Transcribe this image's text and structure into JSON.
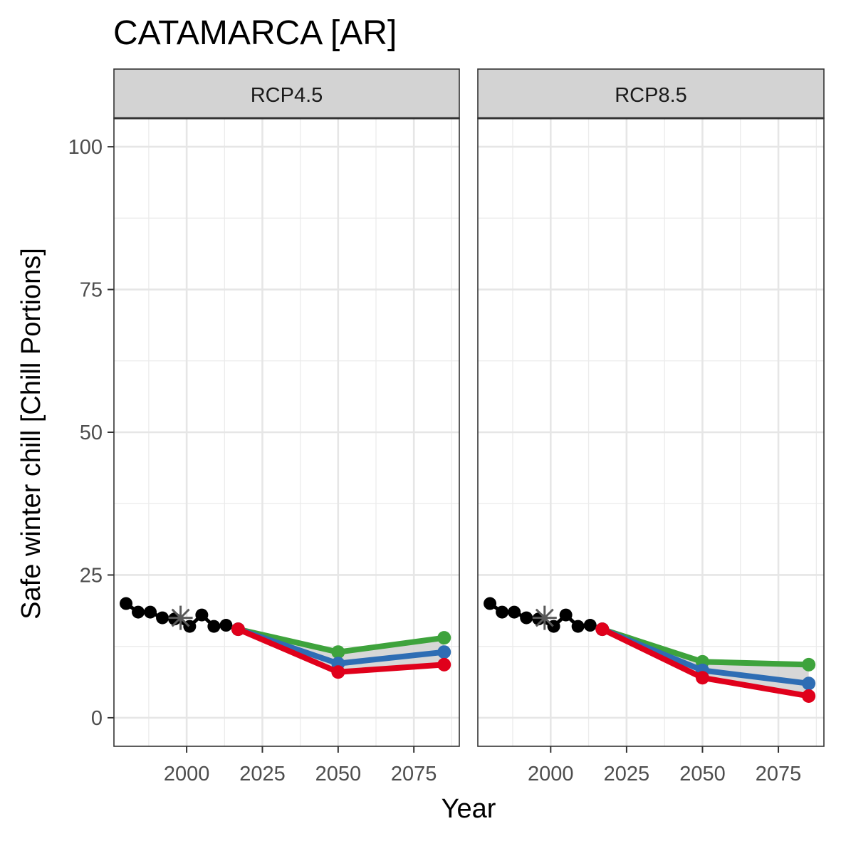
{
  "chart_data": {
    "type": "line",
    "title": "CATAMARCA [AR]",
    "xlabel": "Year",
    "ylabel": "Safe winter chill [Chill Portions]",
    "xlim": [
      1976,
      2090
    ],
    "ylim": [
      -5,
      105
    ],
    "x_ticks": [
      2000,
      2025,
      2050,
      2075
    ],
    "x_tick_labels": [
      "2000",
      "2025",
      "2050",
      "2075"
    ],
    "y_ticks": [
      0,
      25,
      50,
      75,
      100
    ],
    "y_tick_labels": [
      "0",
      "25",
      "50",
      "75",
      "100"
    ],
    "grid": true,
    "legend": "none",
    "colors": {
      "observed": "#000000",
      "optimistic": "#3ea33c",
      "median": "#2e6db4",
      "pessimistic": "#e0001b",
      "band": "#d3d3d3",
      "star": "#595959",
      "strip": "#d3d3d3"
    },
    "panels": [
      {
        "label": "RCP4.5",
        "observed": {
          "x": [
            1980,
            1984,
            1988,
            1992,
            1996,
            2001,
            2005,
            2009,
            2013
          ],
          "y": [
            20,
            18.5,
            18.5,
            17.5,
            17.3,
            16,
            18,
            16,
            16.2
          ]
        },
        "reference_star": {
          "x": 1998,
          "y": 17.5
        },
        "series": [
          {
            "key": "optimistic",
            "x": [
              2017,
              2050,
              2085
            ],
            "y": [
              15.5,
              11.5,
              14
            ]
          },
          {
            "key": "median",
            "x": [
              2017,
              2050,
              2085
            ],
            "y": [
              15.5,
              9.5,
              11.5
            ]
          },
          {
            "key": "pessimistic",
            "x": [
              2017,
              2050,
              2085
            ],
            "y": [
              15.5,
              8,
              9.3
            ]
          }
        ]
      },
      {
        "label": "RCP8.5",
        "observed": {
          "x": [
            1980,
            1984,
            1988,
            1992,
            1996,
            2001,
            2005,
            2009,
            2013
          ],
          "y": [
            20,
            18.5,
            18.5,
            17.5,
            17.3,
            16,
            18,
            16,
            16.2
          ]
        },
        "reference_star": {
          "x": 1998,
          "y": 17.5
        },
        "series": [
          {
            "key": "optimistic",
            "x": [
              2017,
              2050,
              2085
            ],
            "y": [
              15.5,
              9.8,
              9.3
            ]
          },
          {
            "key": "median",
            "x": [
              2017,
              2050,
              2085
            ],
            "y": [
              15.5,
              8.3,
              6
            ]
          },
          {
            "key": "pessimistic",
            "x": [
              2017,
              2050,
              2085
            ],
            "y": [
              15.5,
              7,
              3.8
            ]
          }
        ]
      }
    ]
  }
}
